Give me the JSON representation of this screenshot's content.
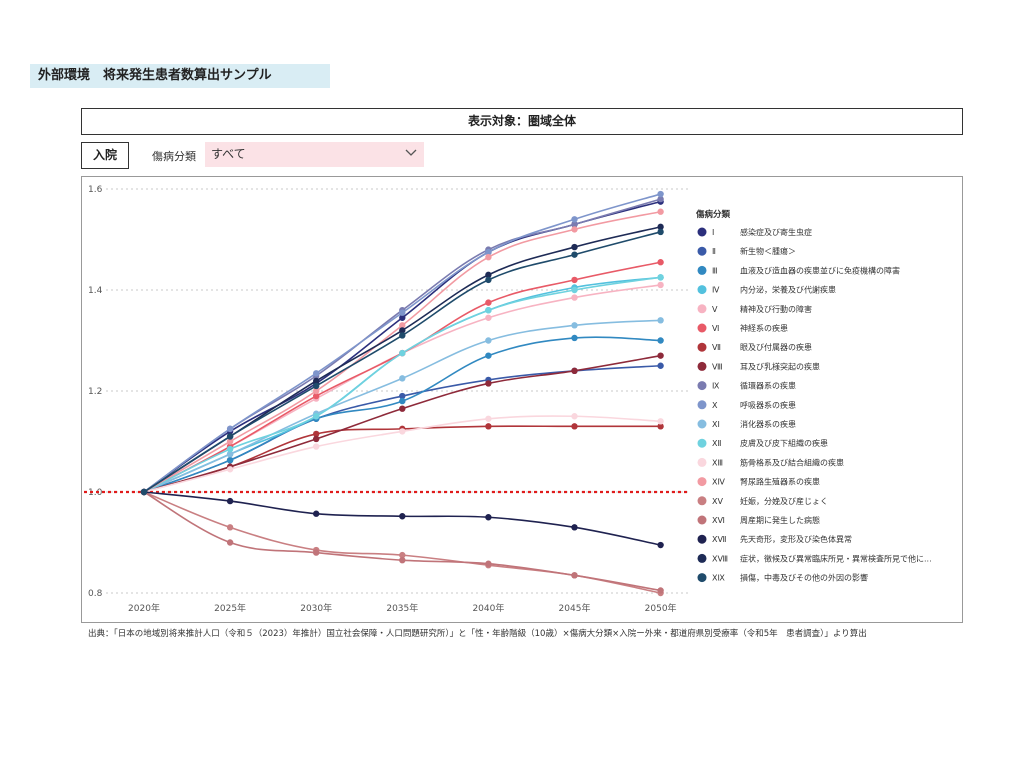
{
  "header": {
    "title": "外部環境　将来発生患者数算出サンプル"
  },
  "target": {
    "label": "表示対象：圏域全体"
  },
  "mode": {
    "label": "入院"
  },
  "filter": {
    "label": "傷病分類",
    "value": "すべて"
  },
  "source": {
    "text": "出典：「日本の地域別将来推計人口（令和５（2023）年推計）国立社会保障・人口問題研究所）」と「性・年齢階級（10歳）×傷病大分類×入院ー外来・都道府県別受療率（令和5年　患者調査）」より算出"
  },
  "chart_data": {
    "type": "line",
    "title": "",
    "xlabel": "",
    "ylabel": "",
    "categories": [
      "2020年",
      "2025年",
      "2030年",
      "2035年",
      "2040年",
      "2045年",
      "2050年"
    ],
    "ylim": [
      0.8,
      1.6
    ],
    "yticks": [
      "1.6",
      "1.4",
      "1.2",
      "1.0",
      "0.8"
    ],
    "ytick_values": [
      1.6,
      1.4,
      1.2,
      1.0,
      0.8
    ],
    "reference_line": {
      "value": 1.0,
      "color": "#e01b1b",
      "style": "dotted"
    },
    "grid": true,
    "legend": {
      "title": "傷病分類",
      "position": "right"
    },
    "series": [
      {
        "num": "Ⅰ",
        "label": "感染症及び寄生虫症",
        "color": "#2b2f7c",
        "values": [
          1.0,
          1.12,
          1.215,
          1.345,
          1.475,
          1.53,
          1.575
        ]
      },
      {
        "num": "Ⅱ",
        "label": "新生物＜腫瘍＞",
        "color": "#3a5aa8",
        "values": [
          1.0,
          1.063,
          1.145,
          1.19,
          1.222,
          1.24,
          1.25
        ]
      },
      {
        "num": "Ⅲ",
        "label": "血液及び造血器の疾患並びに免疫機構の障害",
        "color": "#3189c1",
        "values": [
          1.0,
          1.063,
          1.145,
          1.18,
          1.27,
          1.305,
          1.3
        ]
      },
      {
        "num": "Ⅳ",
        "label": "内分泌，栄養及び代謝疾患",
        "color": "#53c1de",
        "values": [
          1.0,
          1.075,
          1.15,
          1.275,
          1.36,
          1.405,
          1.425
        ]
      },
      {
        "num": "Ⅴ",
        "label": "精神及び行動の障害",
        "color": "#f7b3c2",
        "values": [
          1.0,
          1.09,
          1.185,
          1.275,
          1.345,
          1.385,
          1.41
        ]
      },
      {
        "num": "Ⅵ",
        "label": "神経系の疾患",
        "color": "#e85a67",
        "values": [
          1.0,
          1.09,
          1.19,
          1.275,
          1.375,
          1.42,
          1.455
        ]
      },
      {
        "num": "Ⅶ",
        "label": "眼及び付属器の疾患",
        "color": "#b0353a",
        "values": [
          1.0,
          1.05,
          1.115,
          1.125,
          1.13,
          1.13,
          1.13
        ]
      },
      {
        "num": "Ⅷ",
        "label": "耳及び乳様突起の疾患",
        "color": "#8e2a3a",
        "values": [
          1.0,
          1.05,
          1.105,
          1.165,
          1.215,
          1.24,
          1.27
        ]
      },
      {
        "num": "Ⅸ",
        "label": "循環器系の疾患",
        "color": "#7a7bb0",
        "values": [
          1.0,
          1.125,
          1.23,
          1.36,
          1.48,
          1.53,
          1.58
        ]
      },
      {
        "num": "Ⅹ",
        "label": "呼吸器系の疾患",
        "color": "#7e95cb",
        "values": [
          1.0,
          1.125,
          1.235,
          1.355,
          1.475,
          1.54,
          1.59
        ]
      },
      {
        "num": "ⅩⅠ",
        "label": "消化器系の疾患",
        "color": "#86bde0",
        "values": [
          1.0,
          1.075,
          1.155,
          1.225,
          1.3,
          1.33,
          1.34
        ]
      },
      {
        "num": "ⅩⅡ",
        "label": "皮膚及び皮下組織の疾患",
        "color": "#6fd2df",
        "values": [
          1.0,
          1.085,
          1.15,
          1.275,
          1.36,
          1.4,
          1.425
        ]
      },
      {
        "num": "ⅩⅢ",
        "label": "筋骨格系及び結合組織の疾患",
        "color": "#fad7de",
        "values": [
          1.0,
          1.045,
          1.09,
          1.12,
          1.145,
          1.15,
          1.14
        ]
      },
      {
        "num": "ⅩⅣ",
        "label": "腎尿路生殖器系の疾患",
        "color": "#f29aa2",
        "values": [
          1.0,
          1.1,
          1.2,
          1.33,
          1.465,
          1.52,
          1.555
        ]
      },
      {
        "num": "ⅩⅤ",
        "label": "妊娠，分娩及び産じょく",
        "color": "#c97f82",
        "values": [
          1.0,
          0.93,
          0.885,
          0.875,
          0.855,
          0.835,
          0.8
        ]
      },
      {
        "num": "ⅩⅥ",
        "label": "周産期に発生した病態",
        "color": "#c07479",
        "values": [
          1.0,
          0.9,
          0.88,
          0.865,
          0.858,
          0.835,
          0.805
        ]
      },
      {
        "num": "ⅩⅦ",
        "label": "先天奇形，変形及び染色体異常",
        "color": "#1f2250",
        "values": [
          1.0,
          0.982,
          0.957,
          0.952,
          0.95,
          0.93,
          0.895
        ]
      },
      {
        "num": "ⅩⅧ",
        "label": "症状，徴候及び異常臨床所見・異常検査所見で他に...",
        "color": "#1e2b56",
        "values": [
          1.0,
          1.11,
          1.22,
          1.32,
          1.43,
          1.485,
          1.525
        ]
      },
      {
        "num": "ⅩⅨ",
        "label": "損傷，中毒及びその他の外因の影響",
        "color": "#1f4b6b",
        "values": [
          1.0,
          1.11,
          1.21,
          1.31,
          1.42,
          1.47,
          1.515
        ]
      }
    ]
  }
}
